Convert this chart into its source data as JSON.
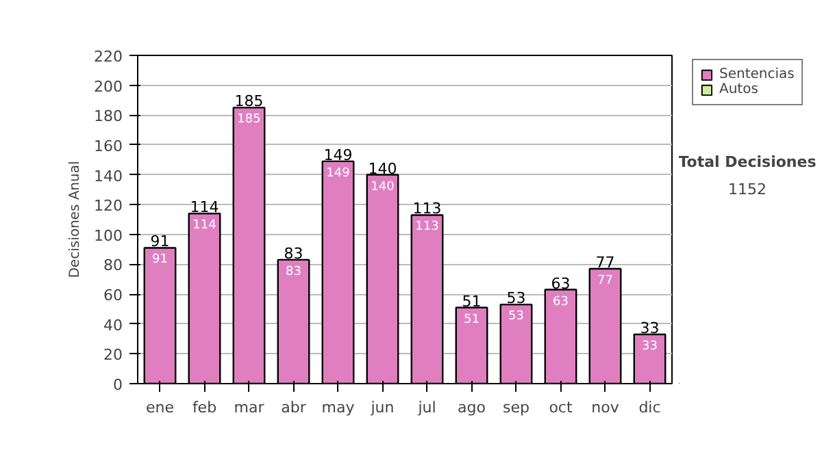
{
  "chart_data": {
    "type": "bar",
    "stacked": true,
    "ylabel": "Decisiones Anual",
    "categories": [
      "ene",
      "feb",
      "mar",
      "abr",
      "may",
      "jun",
      "jul",
      "ago",
      "sep",
      "oct",
      "nov",
      "dic"
    ],
    "series": [
      {
        "name": "Sentencias",
        "color": "#df7fc0",
        "values": [
          91,
          114,
          185,
          83,
          149,
          140,
          113,
          51,
          53,
          63,
          77,
          33
        ],
        "value_labels": [
          "91",
          "114",
          "185",
          "83",
          "149",
          "140",
          "113",
          "51",
          "53",
          "63",
          "77",
          "33"
        ]
      },
      {
        "name": "Autos",
        "color": "#d4eca0",
        "values": [
          0,
          0,
          0,
          0,
          0,
          0,
          0,
          0,
          0,
          0,
          0,
          0
        ]
      }
    ],
    "totals": [
      "91",
      "114",
      "185",
      "83",
      "149",
      "140",
      "113",
      "51",
      "53",
      "63",
      "77",
      "33"
    ],
    "ylim": [
      0,
      220
    ],
    "yticks": [
      0,
      20,
      40,
      60,
      80,
      100,
      120,
      140,
      160,
      180,
      200,
      220
    ],
    "grid": "y",
    "legend": "right",
    "annotations": [
      "Total Decisiones",
      "1152"
    ]
  }
}
